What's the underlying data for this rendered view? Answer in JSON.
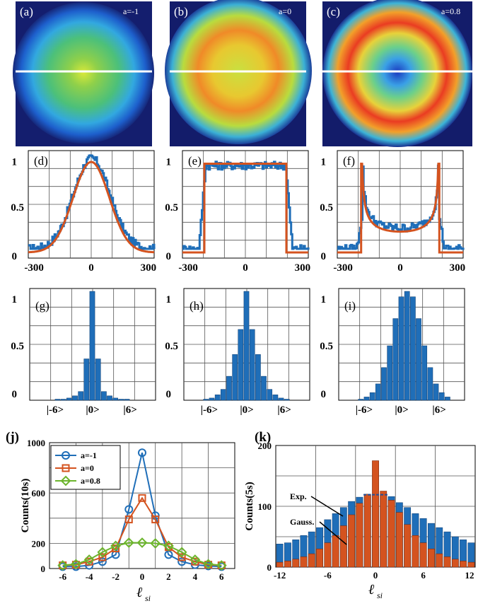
{
  "images": [
    {
      "label": "(a)",
      "param": "a=-1"
    },
    {
      "label": "(b)",
      "param": "a=0"
    },
    {
      "label": "(c)",
      "param": "a=0.8"
    }
  ],
  "profiles": [
    {
      "label": "(d)",
      "xticks": [
        "-300",
        "0",
        "300"
      ],
      "yticks": [
        "1",
        "0.5",
        "0"
      ],
      "theory": "gaussian"
    },
    {
      "label": "(e)",
      "xticks": [
        "-300",
        "0",
        "300"
      ],
      "yticks": [
        "1",
        "0.5",
        "0"
      ],
      "theory": "flattop"
    },
    {
      "label": "(f)",
      "xticks": [
        "-300",
        "0",
        "300"
      ],
      "yticks": [
        "1",
        "0.5",
        "0"
      ],
      "theory": "arcsine"
    }
  ],
  "spectra": [
    {
      "label": "(g)",
      "xticks": [
        "|-6>",
        "|0>",
        "|6>"
      ],
      "yticks": [
        "1",
        "0.5",
        "0"
      ]
    },
    {
      "label": "(h)",
      "xticks": [
        "|-6>",
        "|0>",
        "|6>"
      ],
      "yticks": [
        "1",
        "0.5",
        "0"
      ]
    },
    {
      "label": "(i)",
      "xticks": [
        "|-6>",
        "|0>",
        "|6>"
      ],
      "yticks": [
        "1",
        "0.5",
        "0"
      ]
    }
  ],
  "panel_j": {
    "label": "(j)",
    "ylabel": "Counts(10s)",
    "xlabel": "ℓ",
    "xlabel_sub": "si",
    "xticks": [
      "-6",
      "-4",
      "-2",
      "0",
      "2",
      "4",
      "6"
    ],
    "yticks": [
      "1000",
      "600",
      "200",
      "0"
    ]
  },
  "panel_k": {
    "label": "(k)",
    "ylabel": "Counts(5s)",
    "xlabel": "ℓ",
    "xlabel_sub": "si",
    "xticks": [
      "-12",
      "-6",
      "0",
      "6",
      "12"
    ],
    "yticks": [
      "200",
      "100",
      "0"
    ],
    "annotations": [
      "Exp.",
      "Gauss."
    ]
  },
  "colors": {
    "blue": "#1f6eb8",
    "orange": "#d4531f",
    "green": "#6cb52d"
  },
  "chart_data": [
    {
      "type": "bar",
      "panel": "g",
      "x": [
        -8,
        -7,
        -6,
        -5,
        -4,
        -3,
        -2,
        -1,
        0,
        1,
        2,
        3,
        4,
        5,
        6,
        7,
        8
      ],
      "values": [
        0.0,
        0.0,
        0.01,
        0.01,
        0.02,
        0.04,
        0.08,
        0.38,
        1.0,
        0.38,
        0.08,
        0.04,
        0.02,
        0.01,
        0.01,
        0.0,
        0.0
      ],
      "xlabel": "",
      "ylabel": "",
      "ylim": [
        0,
        1
      ]
    },
    {
      "type": "bar",
      "panel": "h",
      "x": [
        -8,
        -7,
        -6,
        -5,
        -4,
        -3,
        -2,
        -1,
        0,
        1,
        2,
        3,
        4,
        5,
        6,
        7,
        8
      ],
      "values": [
        0.0,
        0.01,
        0.02,
        0.05,
        0.1,
        0.22,
        0.42,
        0.65,
        1.0,
        0.65,
        0.42,
        0.22,
        0.1,
        0.05,
        0.02,
        0.01,
        0.0
      ],
      "xlabel": "",
      "ylabel": "",
      "ylim": [
        0,
        1
      ]
    },
    {
      "type": "bar",
      "panel": "i",
      "x": [
        -8,
        -7,
        -6,
        -5,
        -4,
        -3,
        -2,
        -1,
        0,
        1,
        2,
        3,
        4,
        5,
        6,
        7,
        8
      ],
      "values": [
        0.0,
        0.01,
        0.03,
        0.07,
        0.15,
        0.3,
        0.5,
        0.75,
        0.95,
        1.0,
        0.95,
        0.75,
        0.5,
        0.3,
        0.15,
        0.07,
        0.03
      ],
      "xlabel": "",
      "ylabel": "",
      "ylim": [
        0,
        1
      ]
    },
    {
      "type": "line",
      "panel": "j",
      "x": [
        -6,
        -5,
        -4,
        -3,
        -2,
        -1,
        0,
        1,
        2,
        3,
        4,
        5,
        6
      ],
      "series": [
        {
          "name": "a=-1",
          "values": [
            15,
            15,
            25,
            55,
            110,
            470,
            920,
            420,
            110,
            55,
            30,
            20,
            15
          ]
        },
        {
          "name": "a=0",
          "values": [
            25,
            30,
            55,
            90,
            160,
            390,
            560,
            390,
            170,
            90,
            55,
            30,
            25
          ]
        },
        {
          "name": "a=0.8",
          "values": [
            25,
            35,
            70,
            130,
            180,
            205,
            205,
            200,
            180,
            130,
            70,
            35,
            25
          ]
        }
      ],
      "xlabel": "ℓ si",
      "ylabel": "Counts(10s)",
      "xlim": [
        -7,
        7
      ],
      "ylim": [
        0,
        1000
      ]
    },
    {
      "type": "bar",
      "panel": "k",
      "x": [
        -12,
        -11,
        -10,
        -9,
        -8,
        -7,
        -6,
        -5,
        -4,
        -3,
        -2,
        -1,
        0,
        1,
        2,
        3,
        4,
        5,
        6,
        7,
        8,
        9,
        10,
        11,
        12
      ],
      "series": [
        {
          "name": "Exp.",
          "values": [
            38,
            40,
            45,
            52,
            58,
            65,
            78,
            88,
            98,
            108,
            115,
            118,
            119,
            118,
            116,
            106,
            98,
            88,
            80,
            72,
            65,
            58,
            50,
            45,
            40
          ]
        },
        {
          "name": "Gauss.",
          "values": [
            8,
            10,
            13,
            17,
            22,
            30,
            40,
            52,
            68,
            86,
            105,
            120,
            175,
            125,
            110,
            90,
            70,
            52,
            40,
            30,
            22,
            17,
            13,
            10,
            8
          ]
        }
      ],
      "xlabel": "ℓ si",
      "ylabel": "Counts(5s)",
      "xlim": [
        -12,
        12
      ],
      "ylim": [
        0,
        200
      ]
    }
  ]
}
